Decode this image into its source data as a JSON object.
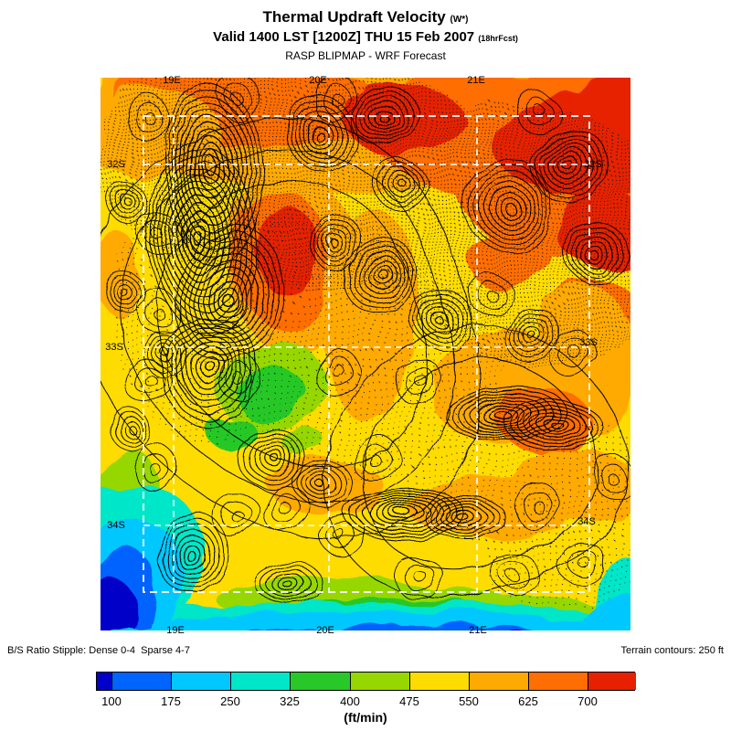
{
  "header": {
    "title": "Thermal Updraft Velocity",
    "title_suffix": "(W*)",
    "valid": "Valid 1400 LST [1200Z] THU 15 Feb 2007",
    "valid_suffix": "(18hrFcst)",
    "model": "RASP BLIPMAP - WRF Forecast"
  },
  "map": {
    "axis": {
      "top": [
        "19E",
        "20E",
        "21E"
      ],
      "bottom": [
        "19E",
        "20E",
        "21E"
      ],
      "left": [
        "32S",
        "33S",
        "34S"
      ],
      "right": [
        "32S",
        "33S",
        "34S"
      ]
    }
  },
  "legend": {
    "stipple_note": "B/S Ratio Stipple: Dense 0-4  Sparse 4-7",
    "terrain_note": "Terrain contours: 250 ft",
    "unit": "(ft/min)",
    "ticks": [
      "100",
      "175",
      "250",
      "325",
      "400",
      "475",
      "550",
      "625",
      "700"
    ],
    "colors": [
      "#0000C8",
      "#0064FF",
      "#00C8FF",
      "#00E6C8",
      "#28C828",
      "#96D700",
      "#FFDC00",
      "#FFAA00",
      "#FF6E00",
      "#E62000"
    ]
  }
}
